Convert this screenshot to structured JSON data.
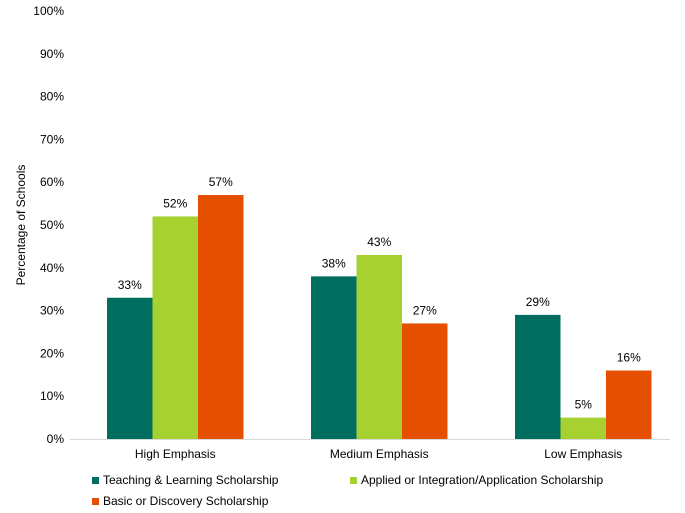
{
  "chart_data": {
    "type": "bar",
    "categories": [
      "High Emphasis",
      "Medium Emphasis",
      "Low Emphasis"
    ],
    "series": [
      {
        "name": "Teaching & Learning Scholarship",
        "values": [
          33,
          38,
          29
        ],
        "color": "#006e5f",
        "labels": [
          "33%",
          "38%",
          "29%"
        ]
      },
      {
        "name": "Applied or Integration/Application Scholarship",
        "values": [
          52,
          43,
          5
        ],
        "color": "#a6d130",
        "labels": [
          "52%",
          "43%",
          "5%"
        ]
      },
      {
        "name": "Basic or Discovery Scholarship",
        "values": [
          57,
          27,
          16
        ],
        "color": "#e55000",
        "labels": [
          "57%",
          "27%",
          "16%"
        ]
      }
    ],
    "ylabel": "Percentage of Schools",
    "xlabel": "",
    "ylim": [
      0,
      100
    ],
    "yticks": [
      0,
      10,
      20,
      30,
      40,
      50,
      60,
      70,
      80,
      90,
      100
    ],
    "ytick_labels": [
      "0%",
      "10%",
      "20%",
      "30%",
      "40%",
      "50%",
      "60%",
      "70%",
      "80%",
      "90%",
      "100%"
    ],
    "grid": false,
    "legend_position": "bottom"
  }
}
